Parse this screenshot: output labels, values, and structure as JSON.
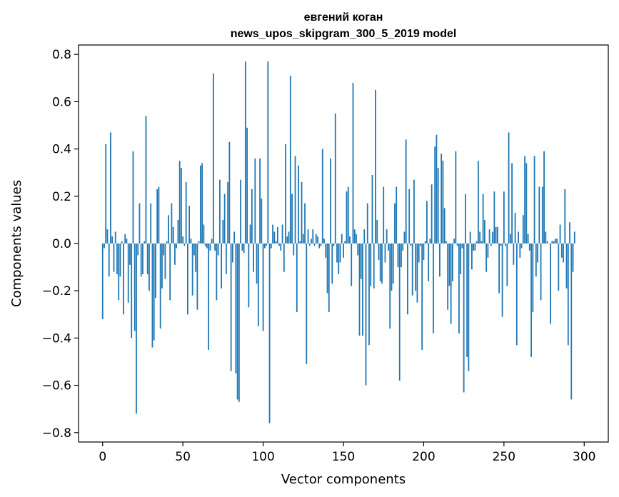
{
  "chart_data": {
    "type": "bar",
    "title": "евгений коган",
    "subtitle": "news_upos_skipgram_300_5_2019 model",
    "xlabel": "Vector components",
    "ylabel": "Components values",
    "xlim": [
      -15,
      315
    ],
    "ylim": [
      -0.84,
      0.84
    ],
    "xticks": [
      0,
      50,
      100,
      150,
      200,
      250,
      300
    ],
    "xtick_labels": [
      "0",
      "50",
      "100",
      "150",
      "200",
      "250",
      "300"
    ],
    "yticks": [
      -0.8,
      -0.6,
      -0.4,
      -0.2,
      0.0,
      0.2,
      0.4,
      0.6,
      0.8
    ],
    "ytick_labels": [
      "−0.8",
      "−0.6",
      "−0.4",
      "−0.2",
      "0.0",
      "0.2",
      "0.4",
      "0.6",
      "0.8"
    ],
    "bar_color": "#1f77b4",
    "grid": false,
    "values": [
      -0.32,
      -0.02,
      0.42,
      0.06,
      -0.14,
      0.47,
      0.03,
      -0.12,
      0.05,
      -0.13,
      -0.24,
      -0.14,
      0.01,
      -0.3,
      0.04,
      0.02,
      -0.25,
      -0.09,
      -0.4,
      0.39,
      -0.37,
      -0.72,
      -0.05,
      0.17,
      -0.14,
      -0.13,
      0.01,
      0.54,
      -0.13,
      -0.2,
      0.17,
      -0.44,
      -0.41,
      -0.23,
      0.23,
      0.24,
      -0.36,
      -0.19,
      -0.05,
      -0.15,
      0.01,
      0.12,
      -0.24,
      0.17,
      0.07,
      -0.09,
      -0.02,
      0.1,
      0.35,
      0.32,
      0.03,
      -0.01,
      0.26,
      -0.3,
      0.16,
      0.02,
      -0.22,
      -0.05,
      -0.12,
      -0.28,
      0.01,
      0.33,
      0.34,
      0.08,
      -0.01,
      -0.02,
      -0.45,
      -0.03,
      0.02,
      0.72,
      -0.03,
      -0.24,
      -0.05,
      0.27,
      -0.19,
      0.1,
      0.21,
      -0.13,
      0.26,
      0.43,
      -0.54,
      -0.08,
      0.05,
      -0.55,
      -0.66,
      -0.67,
      0.27,
      -0.03,
      -0.04,
      0.77,
      0.49,
      -0.27,
      0.08,
      0.23,
      -0.12,
      0.36,
      -0.17,
      -0.35,
      0.36,
      0.19,
      -0.37,
      -0.02,
      -0.01,
      0.77,
      -0.76,
      -0.02,
      0.08,
      0.05,
      0.01,
      0.07,
      -0.01,
      -0.03,
      0.08,
      -0.12,
      0.42,
      0.03,
      0.05,
      0.71,
      0.21,
      -0.05,
      0.37,
      -0.29,
      0.33,
      0.01,
      0.26,
      0.04,
      0.17,
      -0.51,
      0.06,
      -0.01,
      0.02,
      0.06,
      -0.01,
      0.04,
      0.03,
      -0.02,
      -0.01,
      0.4,
      0.02,
      -0.06,
      -0.21,
      -0.29,
      0.36,
      -0.17,
      -0.01,
      0.55,
      -0.08,
      -0.13,
      -0.08,
      0.04,
      -0.06,
      0.01,
      0.22,
      0.24,
      0.03,
      -0.18,
      0.68,
      0.06,
      0.04,
      -0.05,
      -0.39,
      -0.15,
      -0.39,
      0.06,
      -0.6,
      0.17,
      -0.43,
      -0.18,
      0.29,
      -0.19,
      0.65,
      0.1,
      -0.07,
      -0.16,
      -0.17,
      0.24,
      -0.08,
      0.06,
      -0.03,
      -0.36,
      -0.2,
      -0.17,
      0.17,
      0.24,
      -0.1,
      -0.58,
      -0.1,
      -0.03,
      0.05,
      0.44,
      -0.3,
      0.23,
      -0.01,
      -0.22,
      0.27,
      -0.2,
      -0.25,
      -0.08,
      -0.01,
      -0.45,
      -0.07,
      0.01,
      0.18,
      -0.16,
      0.02,
      0.25,
      -0.38,
      0.41,
      0.46,
      0.32,
      -0.14,
      0.38,
      0.35,
      0.15,
      0.01,
      -0.28,
      -0.18,
      -0.34,
      -0.16,
      0.02,
      0.39,
      -0.01,
      -0.38,
      -0.13,
      -0.02,
      -0.63,
      0.21,
      -0.48,
      -0.54,
      0.05,
      -0.11,
      -0.03,
      -0.03,
      0.01,
      0.35,
      0.05,
      0.01,
      0.21,
      0.1,
      -0.12,
      -0.06,
      0.06,
      -0.01,
      0.05,
      0.22,
      0.07,
      0.07,
      -0.21,
      -0.01,
      -0.31,
      0.22,
      -0.01,
      -0.18,
      0.47,
      0.04,
      0.34,
      -0.09,
      0.13,
      -0.43,
      0.05,
      -0.06,
      -0.02,
      0.12,
      0.37,
      0.34,
      0.04,
      -0.03,
      -0.48,
      -0.29,
      0.37,
      -0.14,
      -0.08,
      0.24,
      -0.24,
      0.24,
      0.39,
      0.05,
      0.01,
      0.0,
      -0.34,
      0.01,
      0.01,
      0.02,
      0.02,
      -0.2,
      0.08,
      -0.06,
      -0.08,
      0.23,
      -0.19,
      -0.43,
      0.09,
      -0.66,
      -0.12,
      0.05
    ]
  }
}
